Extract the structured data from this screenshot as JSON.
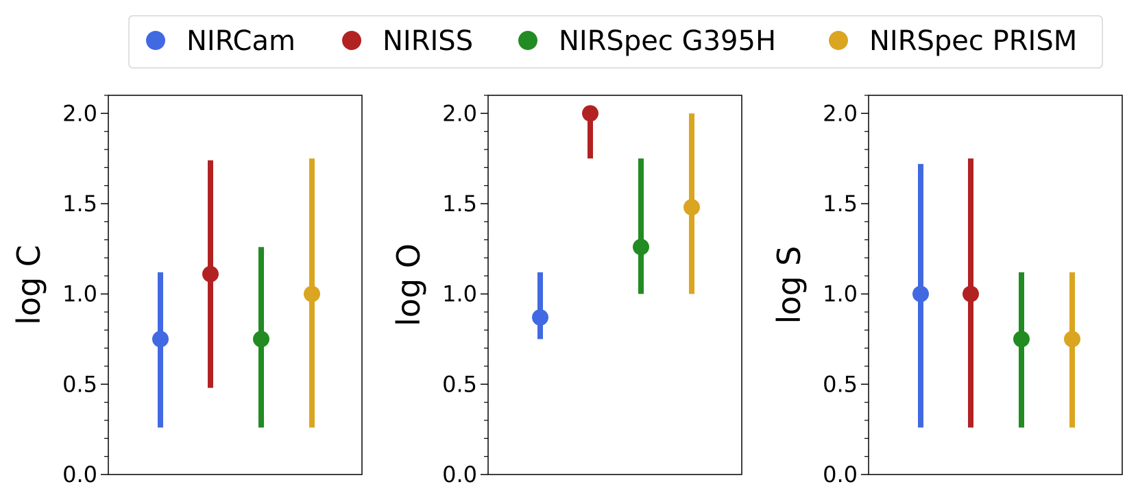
{
  "chart_data": [
    {
      "type": "scatter",
      "title": "",
      "xlabel": "",
      "ylabel": "log C",
      "ylim": [
        0,
        2.1
      ],
      "yticks": [
        "0.0",
        "0.5",
        "1.0",
        "1.5",
        "2.0"
      ],
      "grid": false,
      "series": [
        {
          "name": "NIRCam",
          "value": 0.75,
          "err_low": 0.26,
          "err_high": 1.12
        },
        {
          "name": "NIRISS",
          "value": 1.11,
          "err_low": 0.48,
          "err_high": 1.74
        },
        {
          "name": "NIRSpec G395H",
          "value": 0.75,
          "err_low": 0.26,
          "err_high": 1.26
        },
        {
          "name": "NIRSpec PRISM",
          "value": 1.0,
          "err_low": 0.26,
          "err_high": 1.75
        }
      ]
    },
    {
      "type": "scatter",
      "title": "",
      "xlabel": "",
      "ylabel": "log O",
      "ylim": [
        0,
        2.1
      ],
      "yticks": [
        "0.0",
        "0.5",
        "1.0",
        "1.5",
        "2.0"
      ],
      "grid": false,
      "series": [
        {
          "name": "NIRCam",
          "value": 0.87,
          "err_low": 0.75,
          "err_high": 1.12
        },
        {
          "name": "NIRISS",
          "value": 2.0,
          "err_low": 1.75,
          "err_high": 2.0
        },
        {
          "name": "NIRSpec G395H",
          "value": 1.26,
          "err_low": 1.0,
          "err_high": 1.75
        },
        {
          "name": "NIRSpec PRISM",
          "value": 1.48,
          "err_low": 1.0,
          "err_high": 2.0
        }
      ]
    },
    {
      "type": "scatter",
      "title": "",
      "xlabel": "",
      "ylabel": "log S",
      "ylim": [
        0,
        2.1
      ],
      "yticks": [
        "0.0",
        "0.5",
        "1.0",
        "1.5",
        "2.0"
      ],
      "grid": false,
      "series": [
        {
          "name": "NIRCam",
          "value": 1.0,
          "err_low": 0.26,
          "err_high": 1.72
        },
        {
          "name": "NIRISS",
          "value": 1.0,
          "err_low": 0.26,
          "err_high": 1.75
        },
        {
          "name": "NIRSpec G395H",
          "value": 0.75,
          "err_low": 0.26,
          "err_high": 1.12
        },
        {
          "name": "NIRSpec PRISM",
          "value": 0.75,
          "err_low": 0.26,
          "err_high": 1.12
        }
      ]
    }
  ],
  "legend": {
    "placement": "top-center",
    "entries": [
      {
        "label": "NIRCam",
        "color": "#4169e1"
      },
      {
        "label": "NIRISS",
        "color": "#b22222"
      },
      {
        "label": "NIRSpec G395H",
        "color": "#228b22"
      },
      {
        "label": "NIRSpec PRISM",
        "color": "#daa520"
      }
    ]
  }
}
